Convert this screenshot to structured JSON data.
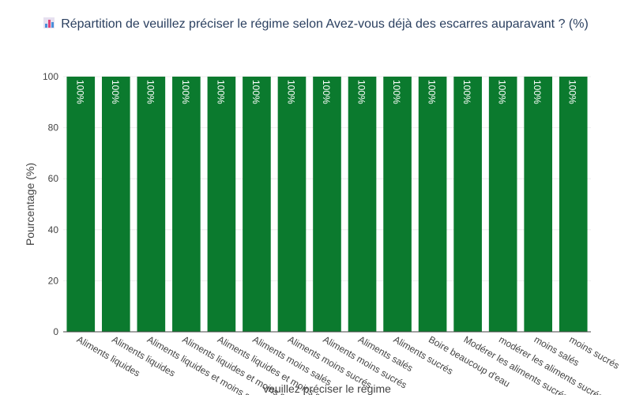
{
  "chart_data": {
    "type": "bar",
    "title": "Répartition de veuillez préciser le régime selon Avez-vous déjà des escarres auparavant ? (%)",
    "title_icon": "bar-chart-emoji-icon",
    "xlabel": "veuillez préciser le régime",
    "ylabel": "Pourcentage (%)",
    "ylim": [
      0,
      100
    ],
    "yticks": [
      0,
      20,
      40,
      60,
      80,
      100
    ],
    "grid": true,
    "legend": "none",
    "categories": [
      "Aliments liquides",
      "Aliments liquides",
      "Aliments liquides et moins sucrés",
      "Aliments liquides et moins salés",
      "Aliments liquides et moins sucrés",
      "Aliments moins salés",
      "Aliments moins sucrés",
      "Aliments moins sucrés",
      "Aliments salés",
      "Aliments sucrés",
      "Boire beaucoup d'eau",
      "Modérer les aliments sucrés",
      "modérer les aliments sucrés",
      "moins salés",
      "moins sucrés"
    ],
    "values": [
      100,
      100,
      100,
      100,
      100,
      100,
      100,
      100,
      100,
      100,
      100,
      100,
      100,
      100,
      100
    ],
    "data_labels": [
      "100%",
      "100%",
      "100%",
      "100%",
      "100%",
      "100%",
      "100%",
      "100%",
      "100%",
      "100%",
      "100%",
      "100%",
      "100%",
      "100%",
      "100%"
    ],
    "colors": {
      "bar": "#0b7a2e",
      "bar_label": "#ffffff",
      "axis_text": "#444444",
      "title": "#2a3f5f",
      "grid": "#eeeeee"
    }
  }
}
